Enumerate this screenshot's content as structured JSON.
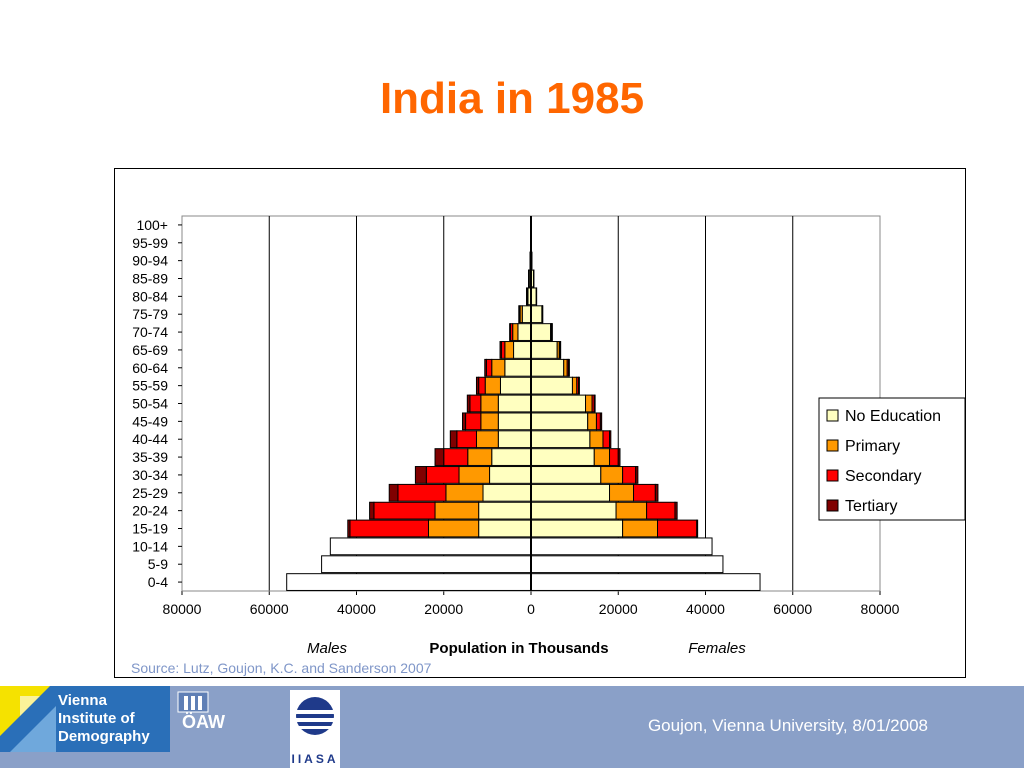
{
  "slide": {
    "title": "India in 1985",
    "source": "Source: Lutz, Goujon, K.C. and Sanderson 2007",
    "footer": "Goujon,  Vienna University, 8/01/2008",
    "logos": {
      "vid_text": "Vienna Institute of Demography",
      "oaw_text": "ÖAW",
      "iiasa_text": "IIASA"
    }
  },
  "colors": {
    "title": "#ff6600",
    "no_education": "#ffffc0",
    "primary": "#ff9900",
    "secondary": "#ff0000",
    "tertiary": "#800000",
    "total_only": "#ffffff",
    "footer_bg": "#8aa0c8",
    "source": "#7f96c8"
  },
  "chart_data": {
    "type": "bar",
    "orientation": "horizontal",
    "subtype": "population-pyramid",
    "xlabel": "Population in Thousands",
    "left_label": "Males",
    "right_label": "Females",
    "xlim": [
      -80000,
      80000
    ],
    "xticks": [
      -80000,
      -60000,
      -40000,
      -20000,
      0,
      20000,
      40000,
      60000,
      80000
    ],
    "xtick_labels": [
      "80000",
      "60000",
      "40000",
      "20000",
      "0",
      "20000",
      "40000",
      "60000",
      "80000"
    ],
    "grid": true,
    "legend_position": "right",
    "categories": [
      "0-4",
      "5-9",
      "10-14",
      "15-19",
      "20-24",
      "25-29",
      "30-34",
      "35-39",
      "40-44",
      "45-49",
      "50-54",
      "55-59",
      "60-64",
      "65-69",
      "70-74",
      "75-79",
      "80-84",
      "85-89",
      "90-94",
      "95-99",
      "100+"
    ],
    "series": [
      {
        "name": "No Education",
        "males": [
          0,
          0,
          0,
          12000,
          12000,
          11000,
          9500,
          9000,
          7500,
          7500,
          7500,
          7000,
          6000,
          4000,
          3000,
          2000,
          700,
          400,
          150,
          50,
          20
        ],
        "females": [
          0,
          0,
          0,
          21000,
          19500,
          18000,
          16000,
          14500,
          13500,
          13000,
          12500,
          9500,
          7500,
          6000,
          4500,
          2500,
          1200,
          600,
          200,
          60,
          20
        ]
      },
      {
        "name": "Primary",
        "males": [
          0,
          0,
          0,
          11500,
          10000,
          8500,
          7000,
          5500,
          5000,
          4000,
          4000,
          3500,
          3000,
          2000,
          1200,
          500,
          200,
          100,
          40,
          10,
          5
        ],
        "females": [
          0,
          0,
          0,
          8000,
          7000,
          5500,
          5000,
          3500,
          3000,
          2000,
          1500,
          1000,
          800,
          500,
          200,
          100,
          50,
          20,
          10,
          0,
          0
        ]
      },
      {
        "name": "Secondary",
        "males": [
          0,
          0,
          0,
          18000,
          14000,
          11000,
          7500,
          5500,
          4500,
          3500,
          2500,
          1500,
          1200,
          800,
          500,
          200,
          80,
          40,
          20,
          0,
          0
        ],
        "females": [
          0,
          0,
          0,
          9000,
          6500,
          5000,
          3000,
          2000,
          1500,
          900,
          500,
          400,
          300,
          200,
          100,
          50,
          20,
          10,
          0,
          0,
          0
        ]
      },
      {
        "name": "Tertiary",
        "males": [
          0,
          0,
          0,
          500,
          1000,
          2000,
          2500,
          2000,
          1500,
          700,
          600,
          500,
          400,
          300,
          200,
          100,
          50,
          20,
          10,
          0,
          0
        ],
        "females": [
          0,
          0,
          0,
          200,
          500,
          600,
          500,
          400,
          300,
          300,
          200,
          200,
          200,
          100,
          100,
          50,
          20,
          10,
          0,
          0,
          0
        ]
      },
      {
        "name": "",
        "males": [
          56000,
          48000,
          46000,
          0,
          0,
          0,
          0,
          0,
          0,
          0,
          0,
          0,
          0,
          0,
          0,
          0,
          0,
          0,
          0,
          0,
          0
        ],
        "females": [
          52500,
          44000,
          41500,
          0,
          0,
          0,
          0,
          0,
          0,
          0,
          0,
          0,
          0,
          0,
          0,
          0,
          0,
          0,
          0,
          0,
          0
        ]
      }
    ]
  }
}
